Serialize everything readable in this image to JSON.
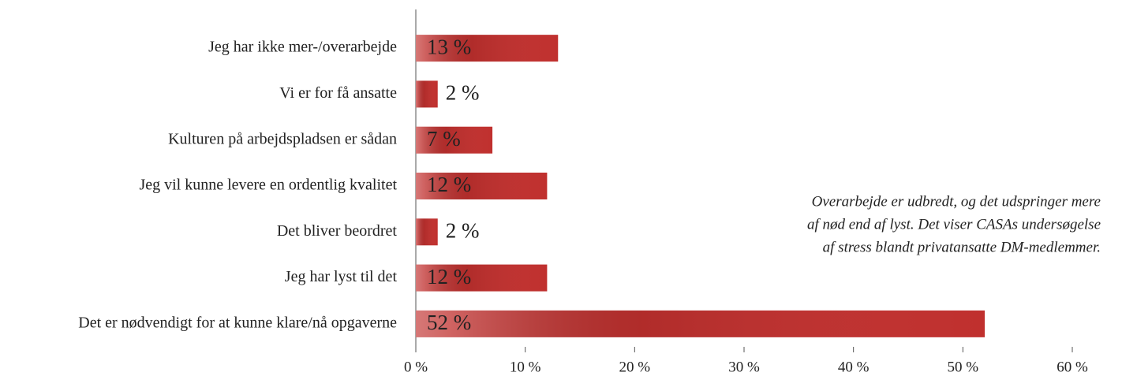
{
  "chart_data": {
    "type": "bar",
    "orientation": "horizontal",
    "categories": [
      "Jeg har ikke mer-/overarbejde",
      "Vi er for få ansatte",
      "Kulturen på arbejdspladsen er sådan",
      "Jeg vil kunne levere en ordentlig kvalitet",
      "Det bliver beordret",
      "Jeg har lyst til det",
      "Det er nødvendigt for at kunne klare/nå opgaverne"
    ],
    "values": [
      13,
      2,
      7,
      12,
      2,
      12,
      52
    ],
    "value_labels": [
      "13 %",
      "2 %",
      "7 %",
      "12 %",
      "2 %",
      "12 %",
      "52 %"
    ],
    "color": "#c0302e",
    "xlim": [
      0,
      60
    ],
    "xticks": [
      {
        "value": 0,
        "label": "0 %"
      },
      {
        "value": 10,
        "label": "10 %"
      },
      {
        "value": 20,
        "label": "20 %"
      },
      {
        "value": 30,
        "label": "30 %"
      },
      {
        "value": 40,
        "label": "40 %"
      },
      {
        "value": 50,
        "label": "50 %"
      },
      {
        "value": 60,
        "label": "60 %"
      }
    ],
    "annotation": [
      "Overarbejde er udbredt, og det udspringer mere",
      "af nød end af lyst. Det viser CASAs undersøgelse",
      "af stress blandt privatansatte DM-medlemmer."
    ],
    "grid": false
  }
}
